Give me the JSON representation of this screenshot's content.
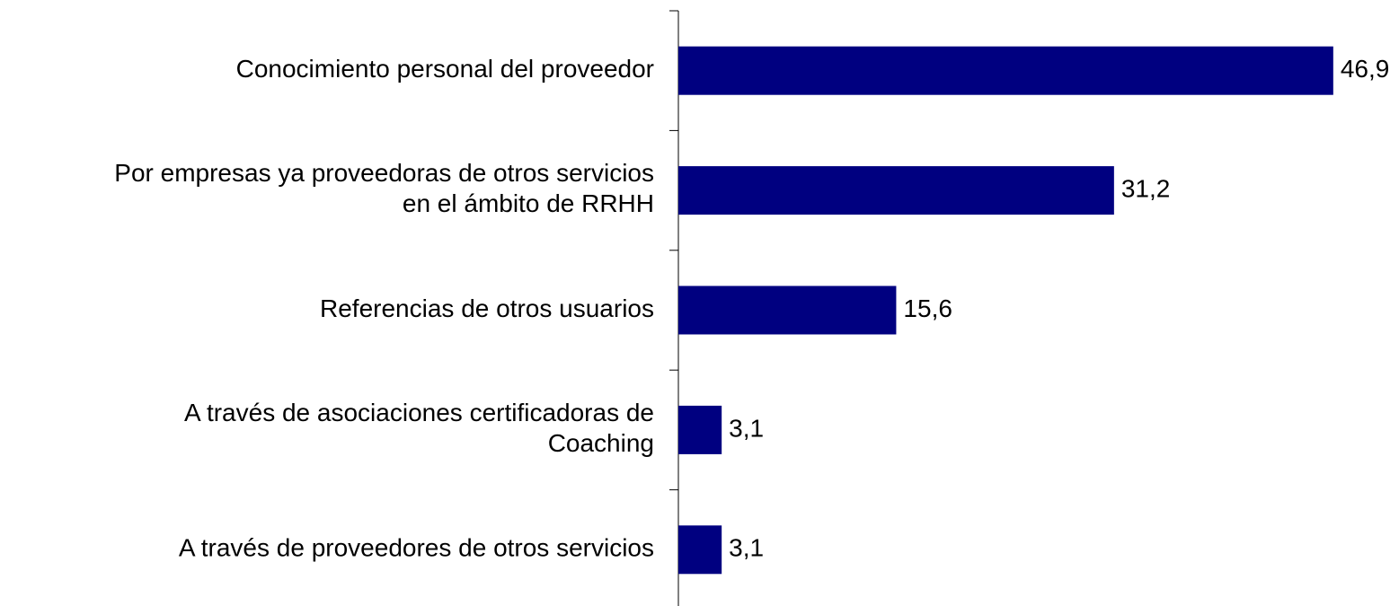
{
  "chart_data": {
    "type": "barh",
    "categories": [
      "Conocimiento personal del proveedor",
      "Por empresas ya proveedoras de otros servicios\nen el ámbito de RRHH",
      "Referencias de otros usuarios",
      "A través de asociaciones certificadoras de\nCoaching",
      "A través de proveedores de otros servicios"
    ],
    "values": [
      46.9,
      31.2,
      15.6,
      3.1,
      3.1
    ],
    "value_labels": [
      "46,9",
      "31,2",
      "15,6",
      "3,1",
      "3,1"
    ],
    "color": "#000080",
    "xlim": [
      0,
      50
    ]
  }
}
